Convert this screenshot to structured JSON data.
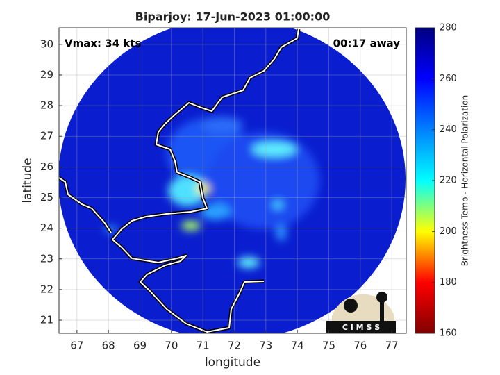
{
  "map": {
    "title": "Biparjoy: 17-Jun-2023 01:00:00",
    "annotation_left": "Vmax: 34 kts",
    "annotation_right": "00:17 away",
    "xlabel": "longitude",
    "ylabel": "latitude",
    "xlim": [
      66.43,
      77.46
    ],
    "ylim": [
      20.57,
      30.54
    ],
    "xticks": [
      67,
      68,
      69,
      70,
      71,
      72,
      73,
      74,
      75,
      76,
      77
    ],
    "yticks": [
      21,
      22,
      23,
      24,
      25,
      26,
      27,
      28,
      29,
      30
    ],
    "grid": true,
    "logo": "C I M S S"
  },
  "colorbar": {
    "label": "Brightness Temp - Horizontal Polarization",
    "lim": [
      160,
      280
    ],
    "ticks": [
      160,
      180,
      200,
      220,
      240,
      260,
      280
    ],
    "colormap": [
      "#800000",
      "#ff0000",
      "#ffff00",
      "#00ffff",
      "#0080ff",
      "#0000ff",
      "#000080"
    ]
  }
}
